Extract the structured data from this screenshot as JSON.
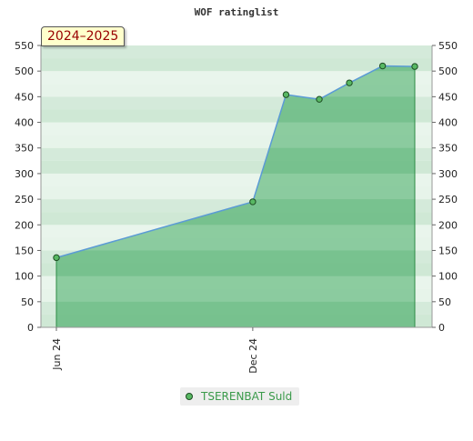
{
  "chart_data": {
    "type": "area",
    "title": "WOF ratinglist",
    "season_label": "2024–2025",
    "ylim": [
      0,
      550
    ],
    "y_ticks": [
      0,
      50,
      100,
      150,
      200,
      250,
      300,
      350,
      400,
      450,
      500,
      550
    ],
    "x_ticks": [
      {
        "label": "Jun 24",
        "date": "2024-06-01"
      },
      {
        "label": "Dec 24",
        "date": "2024-12-01"
      }
    ],
    "x_range": [
      "2024-06-01",
      "2025-05-01"
    ],
    "series": [
      {
        "name": "TSERENBAT Suld",
        "points": [
          {
            "x": "2024-06-01",
            "y": 136
          },
          {
            "x": "2024-12-01",
            "y": 245
          },
          {
            "x": "2025-01-01",
            "y": 454
          },
          {
            "x": "2025-02-01",
            "y": 445
          },
          {
            "x": "2025-03-01",
            "y": 477
          },
          {
            "x": "2025-04-01",
            "y": 510
          },
          {
            "x": "2025-05-01",
            "y": 509
          }
        ]
      }
    ],
    "legend_position": "bottom-center",
    "colors": {
      "line": "#5b9bd5",
      "area_fill": "#6cbe85",
      "marker_fill": "#58b863",
      "marker_stroke": "#1d4d22",
      "band_dark": "#7cc794",
      "band_light": "#dcefe0",
      "legend_text": "#3a9a4a"
    }
  }
}
